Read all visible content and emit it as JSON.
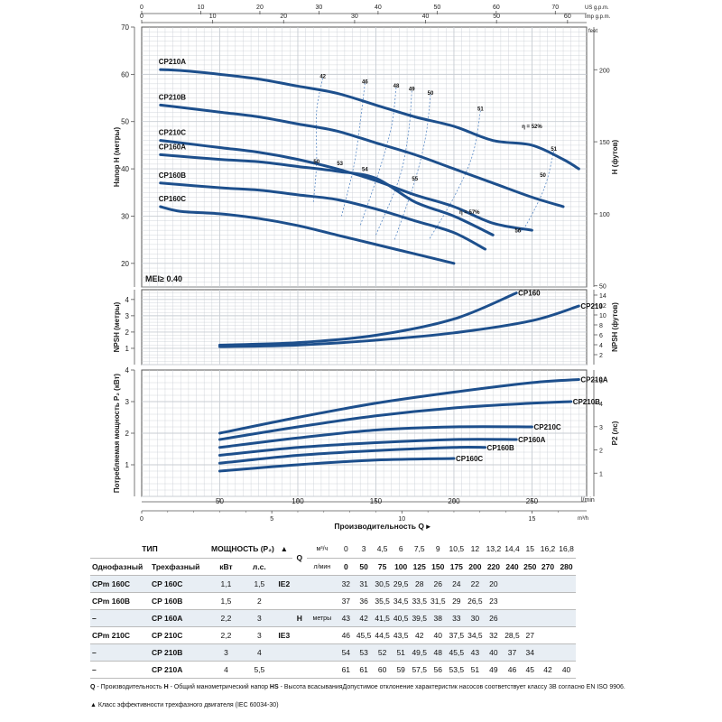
{
  "chart_data": {
    "top_axes": [
      {
        "unit_label": "US g.p.m.",
        "ticks": [
          "0",
          "10",
          "20",
          "30",
          "40",
          "50",
          "60",
          "70"
        ]
      },
      {
        "unit_label": "Imp g.p.m.",
        "ticks": [
          "0",
          "10",
          "20",
          "30",
          "40",
          "50",
          "60"
        ]
      }
    ],
    "bottom_axes": [
      {
        "unit_label": "l/min",
        "ticks": [
          "50",
          "100",
          "150",
          "200",
          "250"
        ],
        "range": [
          0,
          285
        ]
      },
      {
        "unit_label": "m³/h",
        "ticks": [
          "0",
          "5",
          "10",
          "15"
        ]
      }
    ],
    "x_title": "Производительность Q ▸",
    "head_panel": {
      "type": "line",
      "ylabel_left": "Напор H (метры)",
      "ylabel_right": "H (футов)",
      "right_unit": "feet",
      "ylim": [
        15,
        70
      ],
      "yticks_left": [
        "20",
        "30",
        "40",
        "50",
        "60",
        "70"
      ],
      "yticks_right": [
        "50",
        "100",
        "150",
        "200"
      ],
      "mei_label": "MEI≥ 0.40",
      "series": [
        {
          "name": "CP210A",
          "x": [
            12,
            25,
            50,
            75,
            100,
            125,
            150,
            175,
            200,
            225,
            250,
            270,
            280
          ],
          "y": [
            61,
            60.8,
            60,
            59,
            57.5,
            56,
            53.5,
            51,
            49,
            46,
            45,
            42,
            40
          ]
        },
        {
          "name": "CP210B",
          "x": [
            12,
            25,
            50,
            75,
            100,
            125,
            150,
            175,
            200,
            225,
            250,
            270
          ],
          "y": [
            53.5,
            53,
            52,
            51,
            49.5,
            48,
            45.5,
            43,
            40,
            37,
            34,
            32
          ]
        },
        {
          "name": "CP210C",
          "x": [
            12,
            25,
            50,
            75,
            100,
            125,
            150,
            175,
            200,
            225,
            250
          ],
          "y": [
            46,
            45.5,
            44.5,
            43.5,
            42,
            40,
            37.5,
            34.5,
            32,
            28.5,
            27
          ]
        },
        {
          "name": "CP160A",
          "x": [
            12,
            50,
            75,
            100,
            125,
            150,
            175,
            200,
            225
          ],
          "y": [
            43,
            42,
            41.5,
            40.5,
            39.5,
            38,
            33,
            30,
            26
          ]
        },
        {
          "name": "CP160B",
          "x": [
            12,
            50,
            75,
            100,
            125,
            150,
            175,
            200,
            220
          ],
          "y": [
            37,
            36,
            35.5,
            34.5,
            33.5,
            31.5,
            29,
            26.5,
            23
          ]
        },
        {
          "name": "CP160C",
          "x": [
            12,
            25,
            50,
            75,
            100,
            125,
            150,
            175,
            200
          ],
          "y": [
            32,
            31,
            30.5,
            29.5,
            28,
            26,
            24,
            22,
            20
          ]
        }
      ],
      "efficiency_labels": [
        {
          "text": "42",
          "x": 116,
          "y": 59.2
        },
        {
          "text": "46",
          "x": 143,
          "y": 58.1
        },
        {
          "text": "48",
          "x": 163,
          "y": 57.2
        },
        {
          "text": "49",
          "x": 173,
          "y": 56.5
        },
        {
          "text": "50",
          "x": 185,
          "y": 55.7
        },
        {
          "text": "51",
          "x": 217,
          "y": 52.3
        },
        {
          "text": "η = 52%",
          "x": 250,
          "y": 48.6
        },
        {
          "text": "51",
          "x": 264,
          "y": 43.8
        },
        {
          "text": "50",
          "x": 257,
          "y": 38.3
        },
        {
          "text": "50",
          "x": 112,
          "y": 41.2
        },
        {
          "text": "53",
          "x": 127,
          "y": 40.8
        },
        {
          "text": "54",
          "x": 143,
          "y": 39.5
        },
        {
          "text": "55",
          "x": 175,
          "y": 37.5
        },
        {
          "text": "η = 57%",
          "x": 210,
          "y": 30.5
        },
        {
          "text": "56",
          "x": 241,
          "y": 26.6
        }
      ]
    },
    "npsh_panel": {
      "type": "line",
      "ylabel_left": "NPSH (метры)",
      "ylabel_right": "NPSH (футов)",
      "ylim": [
        0,
        4.6
      ],
      "yticks_left": [
        "1",
        "2",
        "3",
        "4"
      ],
      "yticks_right": [
        "2",
        "4",
        "6",
        "8",
        "10",
        "12",
        "14"
      ],
      "series": [
        {
          "name": "CP160",
          "x": [
            50,
            100,
            150,
            200,
            240
          ],
          "y": [
            1.2,
            1.35,
            1.8,
            2.8,
            4.4
          ]
        },
        {
          "name": "CP210",
          "x": [
            50,
            100,
            150,
            200,
            250,
            280
          ],
          "y": [
            1.1,
            1.2,
            1.5,
            1.95,
            2.7,
            3.6
          ]
        }
      ]
    },
    "power_panel": {
      "type": "line",
      "ylabel_left": "Потребляемая мощность P₂ (кВт)",
      "ylabel_right": "P2 (лс)",
      "ylim": [
        0,
        4
      ],
      "yticks_left": [
        "1",
        "2",
        "3",
        "4"
      ],
      "yticks_right": [
        "1",
        "2",
        "3",
        "4",
        "5"
      ],
      "series": [
        {
          "name": "CP210A",
          "x": [
            50,
            100,
            150,
            200,
            250,
            280
          ],
          "y": [
            2.0,
            2.5,
            2.95,
            3.3,
            3.6,
            3.7
          ]
        },
        {
          "name": "CP210B",
          "x": [
            50,
            100,
            150,
            200,
            250,
            275
          ],
          "y": [
            1.8,
            2.2,
            2.55,
            2.8,
            2.95,
            3.0
          ]
        },
        {
          "name": "CP210C",
          "x": [
            50,
            100,
            150,
            200,
            250
          ],
          "y": [
            1.55,
            1.85,
            2.1,
            2.2,
            2.2
          ]
        },
        {
          "name": "CP160A",
          "x": [
            50,
            100,
            150,
            200,
            240
          ],
          "y": [
            1.3,
            1.55,
            1.7,
            1.8,
            1.8
          ]
        },
        {
          "name": "CP160B",
          "x": [
            50,
            100,
            150,
            200,
            220
          ],
          "y": [
            1.05,
            1.3,
            1.45,
            1.55,
            1.55
          ]
        },
        {
          "name": "CP160C",
          "x": [
            50,
            100,
            150,
            200
          ],
          "y": [
            0.8,
            1.0,
            1.15,
            1.2
          ]
        }
      ]
    }
  },
  "table": {
    "type_header": "ТИП",
    "power_header": "МОЩНОСТЬ (P₂)",
    "single_phase": "Однофазный",
    "three_phase": "Трехфазный",
    "kw": "кВт",
    "hp": "л.с.",
    "q_label": "Q",
    "h_label": "H",
    "h_unit": "метры",
    "unit_m3h": "м³/ч",
    "unit_lmin": "л/мин",
    "ie_symbol": "▲",
    "m3h": [
      "0",
      "3",
      "4,5",
      "6",
      "7,5",
      "9",
      "10,5",
      "12",
      "13,2",
      "14,4",
      "15",
      "16,2",
      "16,8"
    ],
    "lmin": [
      "0",
      "50",
      "75",
      "100",
      "125",
      "150",
      "175",
      "200",
      "220",
      "240",
      "250",
      "270",
      "280"
    ],
    "rows": [
      {
        "single": "CPm 160C",
        "three": "CP 160C",
        "kw": "1,1",
        "hp": "1,5",
        "ie": "IE2",
        "h": [
          "32",
          "31",
          "30,5",
          "29,5",
          "28",
          "26",
          "24",
          "22",
          "20",
          "",
          "",
          "",
          ""
        ]
      },
      {
        "single": "CPm 160B",
        "three": "CP 160B",
        "kw": "1,5",
        "hp": "2",
        "ie": "",
        "h": [
          "37",
          "36",
          "35,5",
          "34,5",
          "33,5",
          "31,5",
          "29",
          "26,5",
          "23",
          "",
          "",
          "",
          ""
        ]
      },
      {
        "single": "–",
        "three": "CP 160A",
        "kw": "2,2",
        "hp": "3",
        "ie": "",
        "h": [
          "43",
          "42",
          "41,5",
          "40,5",
          "39,5",
          "38",
          "33",
          "30",
          "26",
          "",
          "",
          "",
          ""
        ]
      },
      {
        "single": "CPm 210C",
        "three": "CP 210C",
        "kw": "2,2",
        "hp": "3",
        "ie": "IE3",
        "h": [
          "46",
          "45,5",
          "44,5",
          "43,5",
          "42",
          "40",
          "37,5",
          "34,5",
          "32",
          "28,5",
          "27",
          "",
          ""
        ]
      },
      {
        "single": "–",
        "three": "CP 210B",
        "kw": "3",
        "hp": "4",
        "ie": "",
        "h": [
          "54",
          "53",
          "52",
          "51",
          "49,5",
          "48",
          "45,5",
          "43",
          "40",
          "37",
          "34",
          "",
          ""
        ]
      },
      {
        "single": "–",
        "three": "CP 210A",
        "kw": "4",
        "hp": "5,5",
        "ie": "",
        "h": [
          "61",
          "61",
          "60",
          "59",
          "57,5",
          "56",
          "53,5",
          "51",
          "49",
          "46",
          "45",
          "42",
          "40"
        ]
      }
    ]
  },
  "notes": {
    "line1_q": "Q",
    "line1_q_text": " - Производительность  ",
    "line1_h": "H",
    "line1_h_text": " - Общий манометрический напор  ",
    "line1_hs": "HS",
    "line1_hs_text": " - Высота всасыванияДопустимое отклонение характеристик насосов соответствует классу 3B согласно EN ISO 9906.",
    "line2_sym": "▲",
    "line2_text": "  Класс эффективности трехфазного двигателя (IEC 60034-30)"
  },
  "colors": {
    "curve": "#1d4f8c",
    "eff": "#5a8ac6",
    "grid": "#c8cdd3",
    "frame": "#555555"
  }
}
